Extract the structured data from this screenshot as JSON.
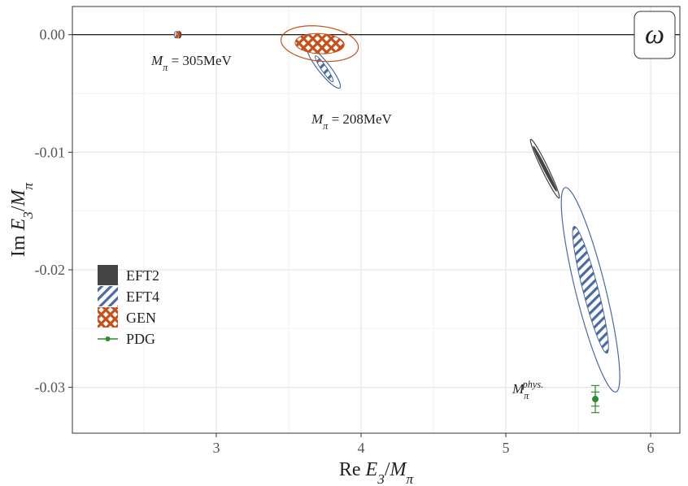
{
  "chart_data": {
    "type": "ellipse",
    "panel_label": "ω",
    "xlabel": [
      [
        "Re ",
        ""
      ],
      [
        "E",
        "i"
      ],
      [
        "3",
        "sub"
      ],
      [
        "/",
        ""
      ],
      [
        "M",
        "i"
      ],
      [
        "π",
        "sub"
      ]
    ],
    "ylabel": [
      [
        "Im ",
        ""
      ],
      [
        "E",
        "i"
      ],
      [
        "3",
        "sub"
      ],
      [
        "/",
        ""
      ],
      [
        "M",
        "i"
      ],
      [
        "π",
        "sub"
      ]
    ],
    "xlim": [
      2.006,
      6.202
    ],
    "ylim": [
      -0.0339,
      0.0024
    ],
    "xticks": [
      3,
      4,
      5,
      6
    ],
    "yticks": [
      {
        "value": 0,
        "label": "0.00"
      },
      -0.01,
      -0.02,
      -0.03
    ],
    "minor_xgrid": [
      2.5,
      3.5,
      4.5,
      5.5
    ],
    "minor_ygrid": [
      -0.005,
      -0.015,
      -0.025
    ],
    "grid": true,
    "hline": 0,
    "legend_position": "left",
    "series": [
      {
        "name": "EFT2",
        "color": "#444444",
        "fill": "solid",
        "ellipses": [
          {
            "x": 2.745,
            "y": 0,
            "sx": 0.012,
            "sy": 0.00028,
            "rho": 0
          },
          {
            "x": 3.652,
            "y": -0.00104,
            "sx": 0.04,
            "sy": 0.0004,
            "rho": -0.95
          },
          {
            "x": 5.27,
            "y": -0.0114,
            "sx": 0.08,
            "sy": 0.0019,
            "rho": -0.99
          }
        ],
        "contours": [
          {
            "x": 5.27,
            "y": -0.0114,
            "sx": 0.1,
            "sy": 0.0025,
            "rho": -0.97
          }
        ]
      },
      {
        "name": "EFT4",
        "color": "#4a6aa6",
        "fill": "stripes",
        "ellipses": [
          {
            "x": 2.722,
            "y": 0,
            "sx": 0.012,
            "sy": 0.00028,
            "rho": 0
          },
          {
            "x": 3.745,
            "y": -0.0029,
            "sx": 0.062,
            "sy": 0.0011,
            "rho": -0.93
          },
          {
            "x": 5.585,
            "y": -0.0217,
            "sx": 0.124,
            "sy": 0.0054,
            "rho": -0.9
          }
        ],
        "contours": [
          {
            "x": 3.742,
            "y": -0.0028,
            "sx": 0.115,
            "sy": 0.00175,
            "rho": -0.9
          },
          {
            "x": 5.585,
            "y": -0.0217,
            "sx": 0.202,
            "sy": 0.0087,
            "rho": -0.85
          }
        ]
      },
      {
        "name": "GEN",
        "color": "#c4501a",
        "fill": "crosshatch",
        "ellipses": [
          {
            "x": 2.735,
            "y": 0,
            "sx": 0.012,
            "sy": 0.00028,
            "rho": 0
          },
          {
            "x": 3.714,
            "y": -0.00076,
            "sx": 0.169,
            "sy": 0.00086,
            "rho": -0.1
          }
        ],
        "contours": [
          {
            "x": 3.714,
            "y": -0.00076,
            "sx": 0.267,
            "sy": 0.00152,
            "rho": -0.2
          }
        ]
      },
      {
        "name": "PDG",
        "color": "#2e8b2e",
        "fill": "point",
        "points": [
          {
            "x": 5.618,
            "y": -0.031,
            "y_errs": [
              0.0006,
              0.00115
            ]
          }
        ]
      }
    ],
    "annotations": [
      [
        [
          "M",
          "i"
        ],
        [
          "π",
          "sub"
        ],
        [
          " = 305MeV",
          ""
        ]
      ],
      [
        [
          "M",
          "i"
        ],
        [
          "π",
          "sub"
        ],
        [
          " = 208MeV",
          ""
        ]
      ],
      [
        [
          "M",
          "i"
        ],
        [
          "π",
          "sub"
        ],
        [
          "phys.",
          "sup"
        ]
      ]
    ]
  }
}
